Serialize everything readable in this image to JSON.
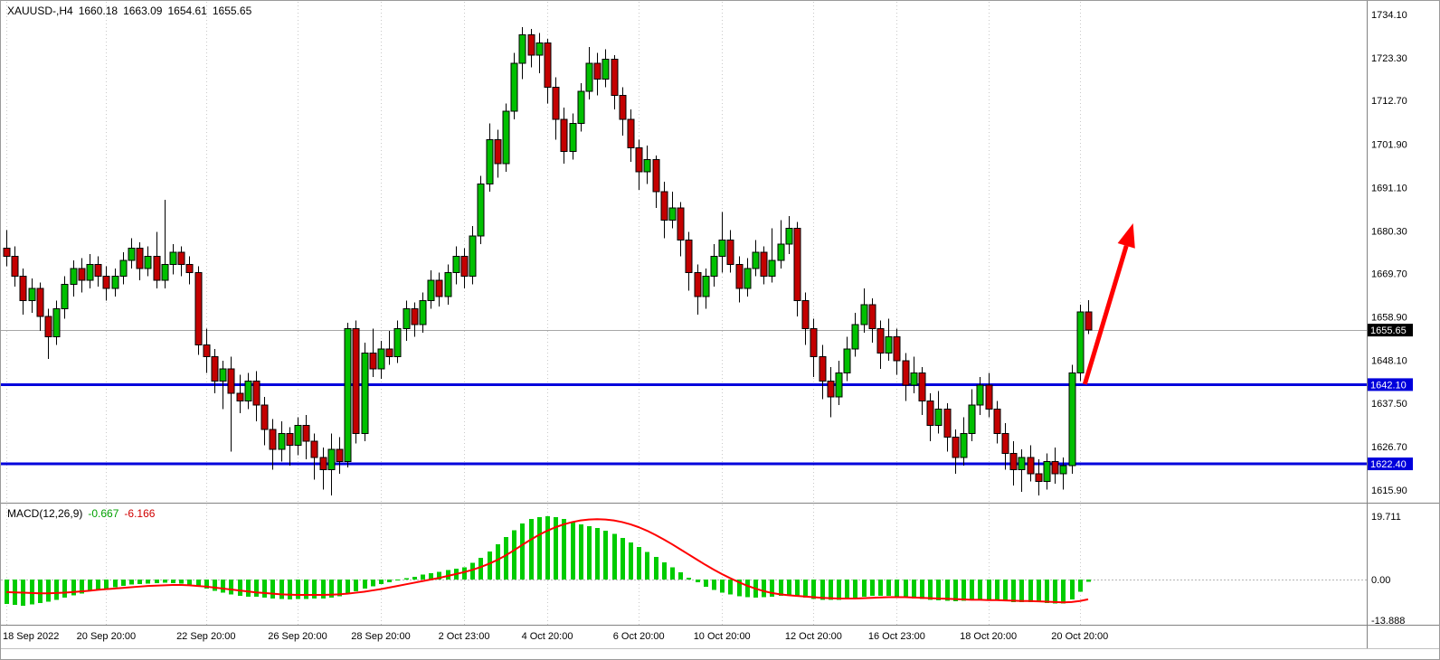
{
  "header": {
    "symbol_period": "XAUUSD-,H4",
    "open": "1660.18",
    "high": "1663.09",
    "low": "1654.61",
    "close": "1655.65"
  },
  "indicator_label": {
    "name": "MACD(12,26,9)",
    "main_value": "-0.667",
    "signal_value": "-6.166"
  },
  "price_axis": {
    "tick_labels": [
      "1734.10",
      "1723.30",
      "1712.70",
      "1701.90",
      "1691.10",
      "1680.30",
      "1669.70",
      "1658.90",
      "1648.10",
      "1637.50",
      "1626.70",
      "1615.90"
    ],
    "tick_values": [
      1734.1,
      1723.3,
      1712.7,
      1701.9,
      1691.1,
      1680.3,
      1669.7,
      1658.9,
      1648.1,
      1637.5,
      1626.7,
      1615.9
    ],
    "current_price_tag": "1655.65",
    "level_tags": [
      "1642.10",
      "1622.40"
    ]
  },
  "macd_axis": {
    "ticks": [
      {
        "v": 19.711,
        "t": "19.711"
      },
      {
        "v": 0,
        "t": "0.00"
      },
      {
        "v": -13.888,
        "t": "-13.888"
      }
    ]
  },
  "levels": [
    {
      "price": 1642.1,
      "label": "1642.10"
    },
    {
      "price": 1622.4,
      "label": "1622.40"
    }
  ],
  "current_price": 1655.65,
  "colors": {
    "up": "#00c000",
    "down": "#c40000",
    "candle_border": "#000000",
    "wick": "#000000",
    "histogram": "#00cc00",
    "signal_line": "#ff0000",
    "level_line": "#0000dc",
    "level_tag_bg": "#0000dc",
    "current_tag_bg": "#000000",
    "current_price_line": "#a8a8a8",
    "arrow": "#ff0000",
    "grid": "#c9c9c9",
    "pane_border": "#828282",
    "axis_text": "#000000",
    "tag_text": "#ffffff"
  },
  "chart_data": {
    "type": "candlestick",
    "symbol": "XAUUSD-",
    "timeframe": "H4",
    "price_range": [
      1615.9,
      1734.1
    ],
    "ohlc_current": {
      "open": 1660.18,
      "high": 1663.09,
      "low": 1654.61,
      "close": 1655.65
    },
    "time_labels": [
      {
        "index": 0,
        "label": "18 Sep 2022"
      },
      {
        "index": 12,
        "label": "20 Sep 20:00"
      },
      {
        "index": 24,
        "label": "22 Sep 20:00"
      },
      {
        "index": 35,
        "label": "26 Sep 20:00"
      },
      {
        "index": 45,
        "label": "28 Sep 20:00"
      },
      {
        "index": 55,
        "label": "2 Oct 23:00"
      },
      {
        "index": 65,
        "label": "4 Oct 20:00"
      },
      {
        "index": 76,
        "label": "6 Oct 20:00"
      },
      {
        "index": 86,
        "label": "10 Oct 20:00"
      },
      {
        "index": 97,
        "label": "12 Oct 20:00"
      },
      {
        "index": 107,
        "label": "16 Oct 23:00"
      },
      {
        "index": 118,
        "label": "18 Oct 20:00"
      },
      {
        "index": 129,
        "label": "20 Oct 20:00"
      }
    ],
    "candles": [
      [
        1676.0,
        1680.5,
        1671.5,
        1674.0
      ],
      [
        1674.0,
        1676.5,
        1666.5,
        1669.0
      ],
      [
        1669.0,
        1671.0,
        1659.5,
        1663.0
      ],
      [
        1663.0,
        1668.5,
        1660.0,
        1666.0
      ],
      [
        1666.0,
        1667.5,
        1655.5,
        1659.0
      ],
      [
        1659.0,
        1661.0,
        1648.5,
        1654.0
      ],
      [
        1654.0,
        1663.0,
        1652.0,
        1661.0
      ],
      [
        1661.0,
        1669.0,
        1658.5,
        1667.0
      ],
      [
        1667.0,
        1673.0,
        1664.0,
        1671.0
      ],
      [
        1671.0,
        1673.5,
        1665.0,
        1668.0
      ],
      [
        1668.0,
        1674.5,
        1666.0,
        1672.0
      ],
      [
        1672.0,
        1674.0,
        1666.5,
        1669.0
      ],
      [
        1669.0,
        1671.5,
        1663.0,
        1666.0
      ],
      [
        1666.0,
        1671.0,
        1664.0,
        1669.0
      ],
      [
        1669.0,
        1675.0,
        1667.0,
        1673.0
      ],
      [
        1673.0,
        1678.5,
        1671.0,
        1676.0
      ],
      [
        1676.0,
        1677.5,
        1668.0,
        1671.0
      ],
      [
        1671.0,
        1676.5,
        1669.0,
        1674.0
      ],
      [
        1674.0,
        1680.0,
        1666.0,
        1668.0
      ],
      [
        1668.0,
        1688.0,
        1666.0,
        1672.0
      ],
      [
        1672.0,
        1677.0,
        1669.5,
        1675.0
      ],
      [
        1675.0,
        1676.5,
        1669.0,
        1672.0
      ],
      [
        1672.0,
        1674.0,
        1667.0,
        1670.0
      ],
      [
        1670.0,
        1671.5,
        1649.5,
        1652.0
      ],
      [
        1652.0,
        1656.0,
        1645.0,
        1649.0
      ],
      [
        1649.0,
        1651.0,
        1640.0,
        1643.0
      ],
      [
        1643.0,
        1648.0,
        1636.0,
        1646.0
      ],
      [
        1646.0,
        1649.0,
        1625.5,
        1640.0
      ],
      [
        1640.0,
        1644.5,
        1635.0,
        1638.0
      ],
      [
        1638.0,
        1645.0,
        1636.0,
        1643.0
      ],
      [
        1643.0,
        1645.5,
        1633.0,
        1637.0
      ],
      [
        1637.0,
        1639.0,
        1627.0,
        1631.0
      ],
      [
        1631.0,
        1633.5,
        1621.0,
        1626.0
      ],
      [
        1626.0,
        1633.0,
        1623.0,
        1630.0
      ],
      [
        1630.0,
        1631.5,
        1622.0,
        1627.0
      ],
      [
        1627.0,
        1634.0,
        1624.5,
        1632.0
      ],
      [
        1632.0,
        1634.5,
        1623.5,
        1628.0
      ],
      [
        1628.0,
        1630.0,
        1618.5,
        1624.0
      ],
      [
        1624.0,
        1626.5,
        1616.0,
        1621.0
      ],
      [
        1621.0,
        1630.0,
        1614.5,
        1626.0
      ],
      [
        1626.0,
        1629.0,
        1620.0,
        1623.0
      ],
      [
        1623.0,
        1657.5,
        1621.5,
        1656.0
      ],
      [
        1656.0,
        1658.0,
        1627.5,
        1630.0
      ],
      [
        1630.0,
        1652.5,
        1628.0,
        1650.0
      ],
      [
        1650.0,
        1656.0,
        1644.0,
        1646.0
      ],
      [
        1646.0,
        1653.0,
        1643.5,
        1651.0
      ],
      [
        1651.0,
        1655.5,
        1647.0,
        1649.0
      ],
      [
        1649.0,
        1658.0,
        1647.5,
        1656.0
      ],
      [
        1656.0,
        1663.0,
        1653.0,
        1661.0
      ],
      [
        1661.0,
        1662.5,
        1654.0,
        1657.0
      ],
      [
        1657.0,
        1665.0,
        1655.0,
        1663.0
      ],
      [
        1663.0,
        1670.5,
        1661.0,
        1668.0
      ],
      [
        1668.0,
        1670.0,
        1661.5,
        1664.0
      ],
      [
        1664.0,
        1672.0,
        1662.0,
        1670.0
      ],
      [
        1670.0,
        1676.5,
        1667.0,
        1674.0
      ],
      [
        1674.0,
        1676.0,
        1666.0,
        1669.0
      ],
      [
        1669.0,
        1681.5,
        1667.0,
        1679.0
      ],
      [
        1679.0,
        1694.0,
        1677.0,
        1692.0
      ],
      [
        1692.0,
        1707.0,
        1690.0,
        1703.0
      ],
      [
        1703.0,
        1705.5,
        1693.5,
        1697.0
      ],
      [
        1697.0,
        1712.0,
        1695.0,
        1710.0
      ],
      [
        1710.0,
        1724.5,
        1708.0,
        1722.0
      ],
      [
        1722.0,
        1731.0,
        1718.0,
        1729.0
      ],
      [
        1729.0,
        1730.5,
        1721.0,
        1724.0
      ],
      [
        1724.0,
        1729.5,
        1719.5,
        1727.0
      ],
      [
        1727.0,
        1728.0,
        1712.0,
        1716.0
      ],
      [
        1716.0,
        1718.5,
        1703.0,
        1708.0
      ],
      [
        1708.0,
        1711.0,
        1697.0,
        1700.0
      ],
      [
        1700.0,
        1709.5,
        1698.0,
        1707.0
      ],
      [
        1707.0,
        1717.0,
        1705.0,
        1715.0
      ],
      [
        1715.0,
        1726.0,
        1713.0,
        1722.0
      ],
      [
        1722.0,
        1724.5,
        1714.0,
        1718.0
      ],
      [
        1718.0,
        1725.5,
        1716.0,
        1723.0
      ],
      [
        1723.0,
        1724.0,
        1710.5,
        1714.0
      ],
      [
        1714.0,
        1716.0,
        1704.0,
        1708.0
      ],
      [
        1708.0,
        1710.5,
        1697.5,
        1701.0
      ],
      [
        1701.0,
        1703.0,
        1690.5,
        1695.0
      ],
      [
        1695.0,
        1701.5,
        1692.0,
        1698.0
      ],
      [
        1698.0,
        1699.0,
        1686.0,
        1690.0
      ],
      [
        1690.0,
        1692.5,
        1678.5,
        1683.0
      ],
      [
        1683.0,
        1690.0,
        1681.0,
        1686.0
      ],
      [
        1686.0,
        1687.5,
        1674.0,
        1678.0
      ],
      [
        1678.0,
        1680.0,
        1665.5,
        1670.0
      ],
      [
        1670.0,
        1672.0,
        1659.5,
        1664.0
      ],
      [
        1664.0,
        1671.0,
        1661.0,
        1669.0
      ],
      [
        1669.0,
        1677.0,
        1666.5,
        1674.0
      ],
      [
        1674.0,
        1685.0,
        1670.0,
        1678.0
      ],
      [
        1678.0,
        1680.5,
        1670.0,
        1672.0
      ],
      [
        1672.0,
        1674.0,
        1662.5,
        1666.0
      ],
      [
        1666.0,
        1673.5,
        1664.0,
        1671.0
      ],
      [
        1671.0,
        1678.0,
        1669.0,
        1675.0
      ],
      [
        1675.0,
        1676.5,
        1667.0,
        1669.0
      ],
      [
        1669.0,
        1681.0,
        1667.5,
        1673.0
      ],
      [
        1673.0,
        1683.0,
        1671.0,
        1677.0
      ],
      [
        1677.0,
        1684.0,
        1674.5,
        1681.0
      ],
      [
        1681.0,
        1682.5,
        1659.0,
        1663.0
      ],
      [
        1663.0,
        1665.0,
        1652.0,
        1656.0
      ],
      [
        1656.0,
        1658.5,
        1644.0,
        1649.0
      ],
      [
        1649.0,
        1652.0,
        1638.5,
        1643.0
      ],
      [
        1643.0,
        1646.5,
        1634.0,
        1639.0
      ],
      [
        1639.0,
        1648.0,
        1637.0,
        1645.0
      ],
      [
        1645.0,
        1654.0,
        1643.0,
        1651.0
      ],
      [
        1651.0,
        1660.0,
        1649.0,
        1657.0
      ],
      [
        1657.0,
        1666.0,
        1655.0,
        1662.0
      ],
      [
        1662.0,
        1663.5,
        1652.5,
        1656.0
      ],
      [
        1656.0,
        1658.0,
        1646.0,
        1650.0
      ],
      [
        1650.0,
        1658.5,
        1648.0,
        1654.0
      ],
      [
        1654.0,
        1656.0,
        1644.5,
        1648.0
      ],
      [
        1648.0,
        1650.0,
        1638.0,
        1642.0
      ],
      [
        1642.0,
        1649.0,
        1640.0,
        1645.0
      ],
      [
        1645.0,
        1646.5,
        1634.5,
        1638.0
      ],
      [
        1638.0,
        1640.0,
        1628.0,
        1632.0
      ],
      [
        1632.0,
        1640.5,
        1630.0,
        1636.0
      ],
      [
        1636.0,
        1637.5,
        1625.5,
        1629.0
      ],
      [
        1629.0,
        1631.0,
        1620.0,
        1624.0
      ],
      [
        1624.0,
        1634.0,
        1622.0,
        1630.0
      ],
      [
        1630.0,
        1641.0,
        1628.0,
        1637.0
      ],
      [
        1637.0,
        1644.0,
        1634.5,
        1642.0
      ],
      [
        1642.0,
        1645.0,
        1634.0,
        1636.0
      ],
      [
        1636.0,
        1638.0,
        1627.5,
        1630.0
      ],
      [
        1630.0,
        1632.5,
        1621.0,
        1625.0
      ],
      [
        1625.0,
        1628.0,
        1617.0,
        1621.0
      ],
      [
        1621.0,
        1626.0,
        1615.5,
        1624.0
      ],
      [
        1624.0,
        1627.0,
        1618.0,
        1620.0
      ],
      [
        1620.0,
        1623.5,
        1614.5,
        1618.0
      ],
      [
        1618.0,
        1625.0,
        1616.0,
        1623.0
      ],
      [
        1623.0,
        1626.5,
        1617.5,
        1620.0
      ],
      [
        1620.0,
        1624.0,
        1616.0,
        1622.0
      ],
      [
        1622.0,
        1647.0,
        1620.0,
        1645.0
      ],
      [
        1645.0,
        1662.0,
        1643.0,
        1660.2
      ],
      [
        1660.18,
        1663.09,
        1654.61,
        1655.65
      ]
    ],
    "macd": {
      "range": [
        -13.888,
        19.711
      ],
      "histogram": [
        -7.6,
        -7.9,
        -8.1,
        -7.7,
        -7.3,
        -6.9,
        -6.3,
        -5.6,
        -4.9,
        -4.3,
        -3.7,
        -3.2,
        -2.8,
        -2.4,
        -2.0,
        -1.6,
        -1.4,
        -1.2,
        -1.1,
        -1.0,
        -1.1,
        -1.3,
        -1.6,
        -2.1,
        -2.8,
        -3.5,
        -4.1,
        -4.6,
        -5.0,
        -5.3,
        -5.4,
        -5.6,
        -5.9,
        -6.1,
        -6.2,
        -6.1,
        -6.0,
        -5.9,
        -5.9,
        -5.7,
        -5.2,
        -4.3,
        -3.6,
        -2.8,
        -2.1,
        -1.4,
        -0.8,
        -0.2,
        0.4,
        0.9,
        1.5,
        2.0,
        2.4,
        2.9,
        3.4,
        3.8,
        5.2,
        6.8,
        8.8,
        11.0,
        13.2,
        15.4,
        17.4,
        18.8,
        19.5,
        19.7,
        19.4,
        18.8,
        18.0,
        17.2,
        16.6,
        16.0,
        15.2,
        14.2,
        13.0,
        11.6,
        10.2,
        8.6,
        7.0,
        5.4,
        3.8,
        2.2,
        0.6,
        -0.9,
        -2.2,
        -3.3,
        -4.1,
        -4.7,
        -5.2,
        -5.5,
        -5.6,
        -5.5,
        -5.3,
        -5.1,
        -5.0,
        -5.2,
        -5.6,
        -6.0,
        -6.3,
        -6.4,
        -6.3,
        -6.0,
        -5.6,
        -5.3,
        -5.1,
        -5.0,
        -5.1,
        -5.4,
        -5.7,
        -5.9,
        -6.1,
        -6.3,
        -6.5,
        -6.6,
        -6.7,
        -6.6,
        -6.5,
        -6.4,
        -6.5,
        -6.6,
        -6.8,
        -7.0,
        -7.1,
        -7.0,
        -7.1,
        -7.3,
        -7.5,
        -7.4,
        -6.2,
        -3.8,
        -0.667
      ],
      "signal": [
        -3.9,
        -4.0,
        -4.1,
        -4.2,
        -4.3,
        -4.3,
        -4.2,
        -4.1,
        -3.9,
        -3.7,
        -3.5,
        -3.2,
        -3.0,
        -2.8,
        -2.6,
        -2.4,
        -2.2,
        -2.0,
        -1.9,
        -1.8,
        -1.7,
        -1.7,
        -1.8,
        -2.0,
        -2.2,
        -2.5,
        -2.8,
        -3.1,
        -3.4,
        -3.7,
        -4.0,
        -4.2,
        -4.4,
        -4.6,
        -4.7,
        -4.8,
        -4.8,
        -4.8,
        -4.8,
        -4.7,
        -4.6,
        -4.4,
        -4.1,
        -3.8,
        -3.4,
        -3.0,
        -2.5,
        -2.0,
        -1.5,
        -1.0,
        -0.5,
        0.0,
        0.5,
        1.1,
        1.7,
        2.3,
        3.0,
        3.9,
        4.9,
        6.1,
        7.5,
        9.1,
        10.8,
        12.4,
        13.9,
        15.2,
        16.3,
        17.2,
        17.9,
        18.4,
        18.7,
        18.8,
        18.7,
        18.4,
        17.9,
        17.2,
        16.3,
        15.2,
        13.9,
        12.5,
        11.0,
        9.4,
        7.8,
        6.2,
        4.6,
        3.1,
        1.7,
        0.4,
        -0.8,
        -1.9,
        -2.8,
        -3.6,
        -4.2,
        -4.6,
        -4.9,
        -5.1,
        -5.3,
        -5.5,
        -5.7,
        -5.8,
        -5.9,
        -5.9,
        -5.9,
        -5.8,
        -5.7,
        -5.6,
        -5.5,
        -5.5,
        -5.5,
        -5.6,
        -5.7,
        -5.8,
        -5.9,
        -6.0,
        -6.1,
        -6.2,
        -6.3,
        -6.3,
        -6.4,
        -6.4,
        -6.5,
        -6.6,
        -6.7,
        -6.7,
        -6.8,
        -6.9,
        -7.0,
        -7.1,
        -7.0,
        -6.7,
        -6.166
      ]
    },
    "annotations": {
      "trend_arrow": {
        "from_index": 129.6,
        "from_price": 1642.2,
        "to_index": 135.4,
        "to_price": 1682.2,
        "color": "#ff0000"
      }
    }
  }
}
